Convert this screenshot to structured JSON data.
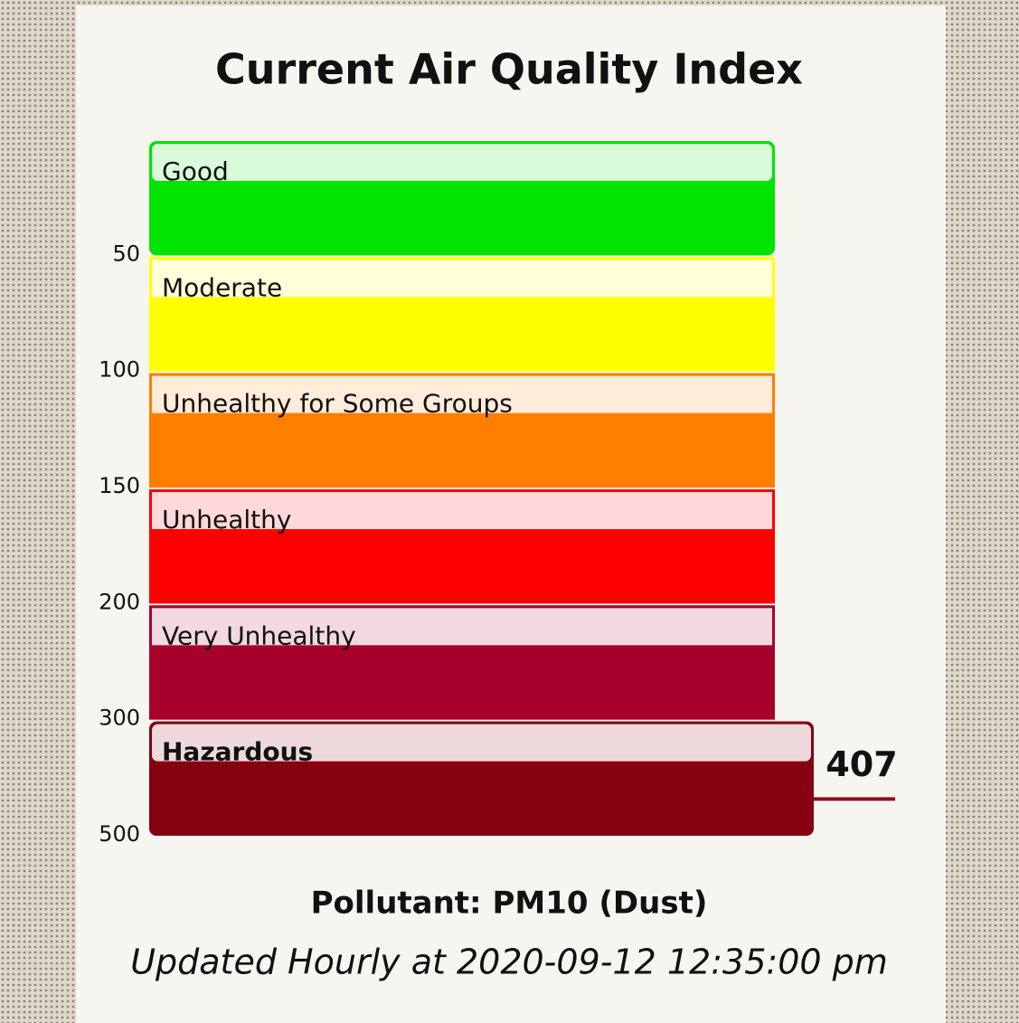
{
  "chart_data": {
    "type": "aqi-scale",
    "title": "Current Air Quality Index",
    "categories": [
      "Good",
      "Moderate",
      "Unhealthy for Some Groups",
      "Unhealthy",
      "Very Unhealthy",
      "Hazardous"
    ],
    "colors": [
      "#00e400",
      "#ffff00",
      "#ff7e00",
      "#ff0000",
      "#a8002c",
      "#870012"
    ],
    "ylim": [
      0,
      500
    ],
    "yticks": [
      50,
      100,
      150,
      200,
      300,
      500
    ],
    "value": 407,
    "marker_color": "#8a1020",
    "subtitle": "Pollutant: PM10 (Dust)",
    "note": "Updated Hourly at 2020-09-12 12:35:00 pm"
  }
}
